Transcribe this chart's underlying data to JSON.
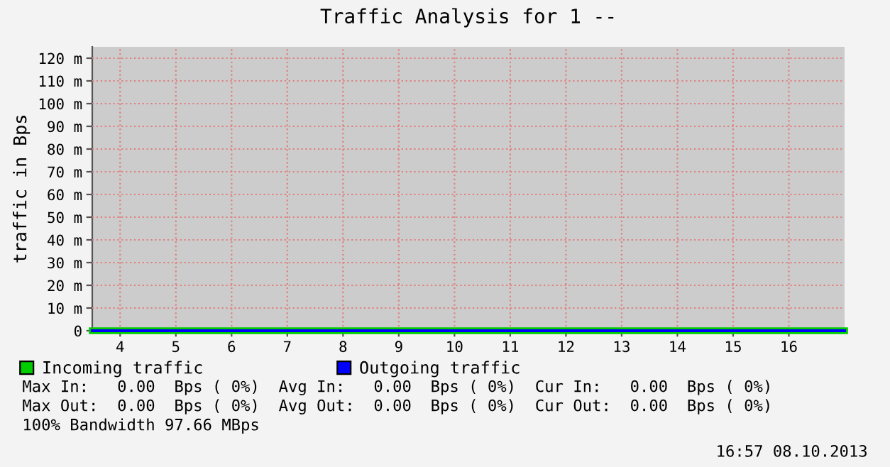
{
  "chart_data": {
    "type": "line",
    "title": "Traffic Analysis for 1 --",
    "ylabel": "traffic in Bps",
    "x": [
      3.5,
      17
    ],
    "series": [
      {
        "name": "Incoming traffic",
        "color": "#00cc00",
        "values": [
          0,
          0
        ]
      },
      {
        "name": "Outgoing traffic",
        "color": "#0000ff",
        "values": [
          0,
          0
        ]
      }
    ],
    "xlim": [
      3.5,
      17
    ],
    "xticks": [
      4,
      5,
      6,
      7,
      8,
      9,
      10,
      11,
      12,
      13,
      14,
      15,
      16
    ],
    "ylim": [
      0,
      125
    ],
    "yticks": [
      0,
      {
        "value": 10,
        "label": "10 m"
      },
      {
        "value": 20,
        "label": "20 m"
      },
      {
        "value": 30,
        "label": "30 m"
      },
      {
        "value": 40,
        "label": "40 m"
      },
      {
        "value": 50,
        "label": "50 m"
      },
      {
        "value": 60,
        "label": "60 m"
      },
      {
        "value": 70,
        "label": "70 m"
      },
      {
        "value": 80,
        "label": "80 m"
      },
      {
        "value": 90,
        "label": "90 m"
      },
      {
        "value": 100,
        "label": "100 m"
      },
      {
        "value": 110,
        "label": "110 m"
      },
      {
        "value": 120,
        "label": "120 m"
      }
    ],
    "grid": true,
    "legend": "bottom",
    "annotations": [
      "Max In:   0.00  Bps ( 0%)  Avg In:   0.00  Bps ( 0%)  Cur In:   0.00  Bps ( 0%)",
      "Max Out:  0.00  Bps ( 0%)  Avg Out:  0.00  Bps ( 0%)  Cur Out:  0.00  Bps ( 0%)",
      "100% Bandwidth 97.66 MBps",
      "16:57 08.10.2013"
    ]
  }
}
